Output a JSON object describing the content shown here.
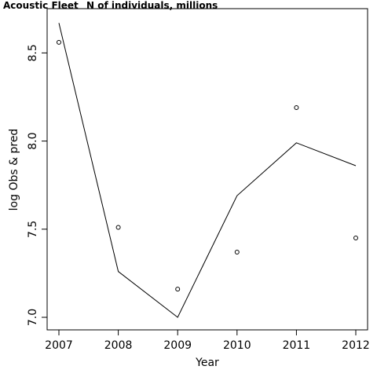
{
  "chart_data": {
    "type": "line",
    "title": "Acoustic Fleet",
    "subtitle": "N of individuals, millions",
    "xlabel": "Year",
    "ylabel": "log Obs & pred",
    "xlim": [
      2007,
      2012
    ],
    "ylim": [
      7.0,
      8.65
    ],
    "x_ticks": [
      "2007",
      "2008",
      "2009",
      "2010",
      "2011",
      "2012"
    ],
    "y_ticks": [
      "7.0",
      "7.5",
      "8.0",
      "8.5"
    ],
    "x": [
      2007,
      2008,
      2009,
      2010,
      2011,
      2012
    ],
    "series": [
      {
        "kind": "points",
        "marker": "open-circle",
        "values": [
          8.56,
          7.51,
          7.16,
          7.37,
          8.19,
          7.45
        ]
      },
      {
        "kind": "line",
        "values": [
          8.67,
          7.26,
          7.0,
          7.69,
          7.99,
          7.86
        ]
      }
    ],
    "grid": false,
    "legend": "none"
  }
}
